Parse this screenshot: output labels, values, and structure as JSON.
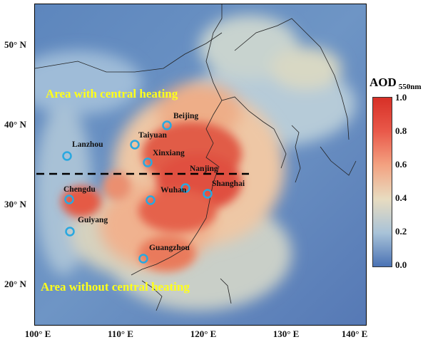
{
  "map": {
    "y_axis_labels": [
      "50° N",
      "40° N",
      "30° N",
      "20° N"
    ],
    "x_axis_labels": [
      "100° E",
      "110° E",
      "120° E",
      "130° E",
      "140° E"
    ],
    "region_north_label": "Area with central heating",
    "region_south_label": "Area without central heating",
    "cities": [
      {
        "name": "Beijing"
      },
      {
        "name": "Taiyuan"
      },
      {
        "name": "Lanzhou"
      },
      {
        "name": "Xinxiang"
      },
      {
        "name": "Nanjing"
      },
      {
        "name": "Shanghai"
      },
      {
        "name": "Chengdu"
      },
      {
        "name": "Wuhan"
      },
      {
        "name": "Guiyang"
      },
      {
        "name": "Guangzhou"
      }
    ],
    "marker_color": "#29a8e0",
    "heating_line_color": "#000000"
  },
  "colorbar": {
    "title": "AOD",
    "subscript": "550nm",
    "ticks": [
      "1.0",
      "0.8",
      "0.6",
      "0.4",
      "0.2",
      "0.0"
    ],
    "range": [
      0.0,
      1.0
    ],
    "colors": [
      "#d73027",
      "#e9594a",
      "#f3a281",
      "#e8dcc0",
      "#a9c3d8",
      "#4a72b4"
    ]
  }
}
